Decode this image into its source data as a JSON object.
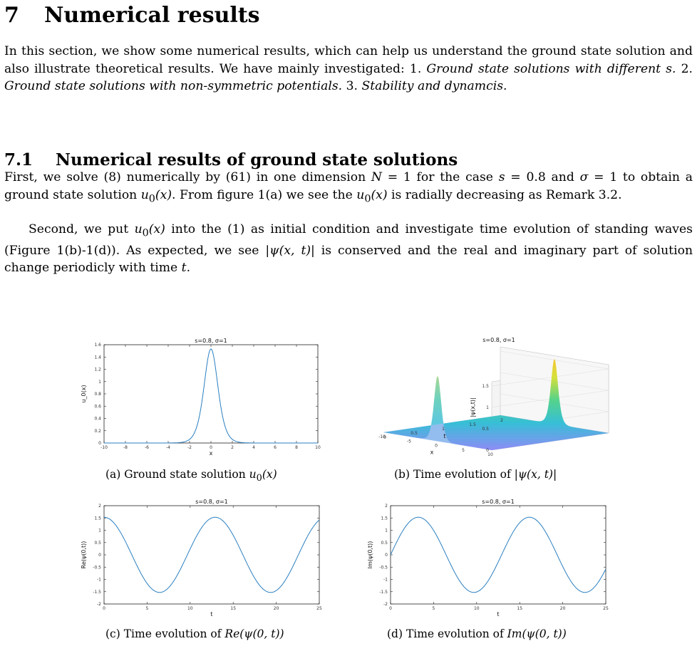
{
  "section": {
    "number": "7",
    "title": "Numerical results"
  },
  "intro": {
    "text_1": "In this section, we show some numerical results, which can help us understand the ground state solution and also illustrate theoretical results. We have mainly investigated: 1. ",
    "item_1": "Ground state solutions with different s.",
    "text_2": " 2. ",
    "item_2": "Ground state solutions with non-symmetric potentials.",
    "text_3": " 3. ",
    "item_3": "Stability and dynamcis."
  },
  "subsection": {
    "number": "7.1",
    "title": "Numerical results of ground state solutions"
  },
  "para2": {
    "t1": "First, we solve (8) numerically by (61) in one dimension ",
    "m1": "N",
    "t2": " = 1 for the case ",
    "m2": "s",
    "t3": " = 0.8 and ",
    "m3": "σ",
    "t4": " = 1 to obtain a ground state solution ",
    "m4": "u",
    "m4_sub": "0",
    "m4_arg": "(x)",
    "t5": ". From figure 1(a) we see the ",
    "m5": "u",
    "m5_sub": "0",
    "m5_arg": "(x)",
    "t6": " is radially decreasing as Remark 3.2."
  },
  "para3": {
    "t1": "Second, we put ",
    "m1": "u",
    "m1_sub": "0",
    "m1_arg": "(x)",
    "t2": " into the (1) as initial condition and investigate time evolution of standing waves (Figure 1(b)-1(d)). As expected, we see ",
    "m2": "|ψ(x, t)|",
    "t3": " is conserved and the real and imaginary part of solution change periodicly with time ",
    "m3": "t",
    "t4": "."
  },
  "figures": {
    "a": {
      "title": "s=0.8, σ=1",
      "ylabel": "u_0(x)",
      "xlabel": "x",
      "caption": "(a) Ground state solution u0(x)",
      "caption_pre": "(a) Ground state solution ",
      "caption_math": "u",
      "caption_sub": "0",
      "caption_arg": "(x)"
    },
    "b": {
      "title": "s=0.8, σ=1",
      "zlabel": "|ψ(x,t)|",
      "xlabel": "x",
      "tlabel": "t",
      "caption_pre": "(b) Time evolution of ",
      "caption_math": "|ψ(x, t)|"
    },
    "c": {
      "title": "s=0.8, σ=1",
      "ylabel": "Re(ψ(0,t))",
      "xlabel": "t",
      "caption_pre": "(c) Time evolution of ",
      "caption_math": "Re(ψ(0, t))"
    },
    "d": {
      "title": "s=0.8, σ=1",
      "ylabel": "Im(ψ(0,t))",
      "xlabel": "t",
      "caption_pre": "(d) Time evolution of ",
      "caption_math": "Im(ψ(0, t))"
    }
  },
  "chart_data": [
    {
      "type": "line",
      "id": "a",
      "title": "s=0.8, σ=1",
      "xlabel": "x",
      "ylabel": "u_0(x)",
      "xlim": [
        -10,
        10
      ],
      "ylim": [
        0,
        1.6
      ],
      "xticks": [
        -10,
        -8,
        -6,
        -4,
        -2,
        0,
        2,
        4,
        6,
        8,
        10
      ],
      "yticks": [
        0,
        0.2,
        0.4,
        0.6,
        0.8,
        1,
        1.2,
        1.4,
        1.6
      ],
      "x": [
        -10,
        -4,
        -3,
        -2.5,
        -2,
        -1.5,
        -1,
        -0.5,
        0,
        0.5,
        1,
        1.5,
        2,
        2.5,
        3,
        4,
        10
      ],
      "y": [
        0,
        0.01,
        0.03,
        0.07,
        0.16,
        0.35,
        0.7,
        1.18,
        1.53,
        1.18,
        0.7,
        0.35,
        0.16,
        0.07,
        0.03,
        0.01,
        0
      ]
    },
    {
      "type": "area",
      "id": "b",
      "title": "s=0.8, σ=1",
      "xlabel": "x",
      "ylabel": "t",
      "zlabel": "|ψ(x,t)|",
      "xlim": [
        -10,
        10
      ],
      "tlim": [
        0,
        2
      ],
      "zlim": [
        0,
        1.5
      ],
      "xticks": [
        -10,
        -5,
        0,
        5,
        10
      ],
      "tticks": [
        0,
        0.5,
        1,
        1.5,
        2
      ],
      "zticks": [
        0,
        0.5,
        1,
        1.5
      ],
      "peak": 1.53
    },
    {
      "type": "line",
      "id": "c",
      "title": "s=0.8, σ=1",
      "xlabel": "t",
      "ylabel": "Re(ψ(0,t))",
      "xlim": [
        0,
        25
      ],
      "ylim": [
        -2,
        2
      ],
      "xticks": [
        0,
        5,
        10,
        15,
        20,
        25
      ],
      "yticks": [
        -2,
        -1.5,
        -1,
        -0.5,
        0,
        0.5,
        1,
        1.5,
        2
      ],
      "amplitude": 1.53,
      "period": 12.9,
      "phase": "cos"
    },
    {
      "type": "line",
      "id": "d",
      "title": "s=0.8, σ=1",
      "xlabel": "t",
      "ylabel": "Im(ψ(0,t))",
      "xlim": [
        0,
        25
      ],
      "ylim": [
        -2,
        2
      ],
      "xticks": [
        0,
        5,
        10,
        15,
        20,
        25
      ],
      "yticks": [
        -2,
        -1.5,
        -1,
        -0.5,
        0,
        0.5,
        1,
        1.5,
        2
      ],
      "amplitude": 1.53,
      "period": 12.9,
      "phase": "sin"
    }
  ],
  "colors": {
    "line": "#2a7fc0",
    "axis": "#222222"
  }
}
